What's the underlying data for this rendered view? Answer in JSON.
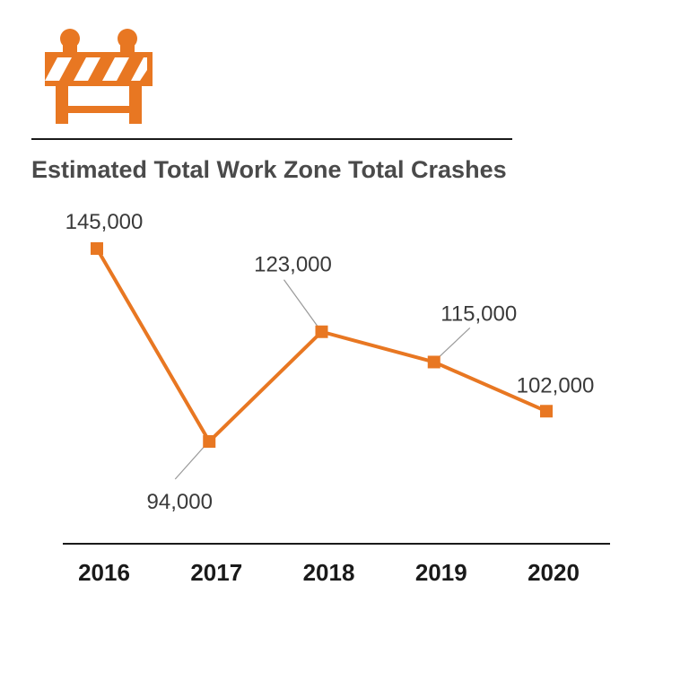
{
  "colors": {
    "accent": "#e87722",
    "rule": "#1a1a1a",
    "leader": "#9a9a9a"
  },
  "icon": "road-barricade-icon",
  "chart_data": {
    "type": "line",
    "title": "Estimated Total Work Zone Total Crashes",
    "xlabel": "",
    "ylabel": "",
    "categories": [
      "2016",
      "2017",
      "2018",
      "2019",
      "2020"
    ],
    "values": [
      145000,
      94000,
      123000,
      115000,
      102000
    ],
    "data_labels": [
      "145,000",
      "94,000",
      "123,000",
      "115,000",
      "102,000"
    ],
    "ylim": [
      80000,
      160000
    ],
    "grid": false,
    "legend": "none"
  }
}
